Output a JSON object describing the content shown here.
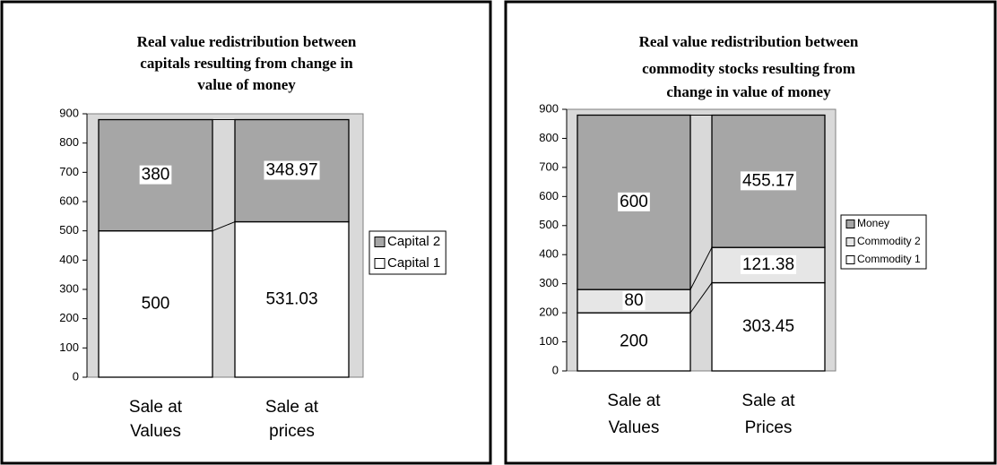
{
  "chart_data": [
    {
      "type": "stacked-bar",
      "title": [
        "Real value redistribution between",
        "capitals resulting from change in",
        "value of money"
      ],
      "categories": [
        [
          "Sale at",
          "Values"
        ],
        [
          "Sale at",
          "prices"
        ]
      ],
      "series": [
        {
          "name": "Capital 1",
          "color": "#ffffff",
          "values": [
            500,
            531.03
          ]
        },
        {
          "name": "Capital 2",
          "color": "#a6a6a6",
          "values": [
            380,
            348.97
          ]
        }
      ],
      "ylim": [
        0,
        900
      ],
      "yticks": [
        0,
        100,
        200,
        300,
        400,
        500,
        600,
        700,
        800,
        900
      ],
      "grid": false,
      "legend": "right"
    },
    {
      "type": "stacked-bar",
      "title": [
        "Real value redistribution between",
        "commodity  stocks resulting from",
        "change in value of money"
      ],
      "categories": [
        [
          "Sale at",
          "Values"
        ],
        [
          "Sale at",
          "Prices"
        ]
      ],
      "series": [
        {
          "name": "Commodity 1",
          "color": "#ffffff",
          "values": [
            200,
            303.45
          ]
        },
        {
          "name": "Commodity 2",
          "color": "#e6e6e6",
          "values": [
            80,
            121.38
          ]
        },
        {
          "name": "Money",
          "color": "#a6a6a6",
          "values": [
            600,
            455.17
          ]
        }
      ],
      "ylim": [
        0,
        900
      ],
      "yticks": [
        0,
        100,
        200,
        300,
        400,
        500,
        600,
        700,
        800,
        900
      ],
      "grid": false,
      "legend": "right"
    }
  ]
}
